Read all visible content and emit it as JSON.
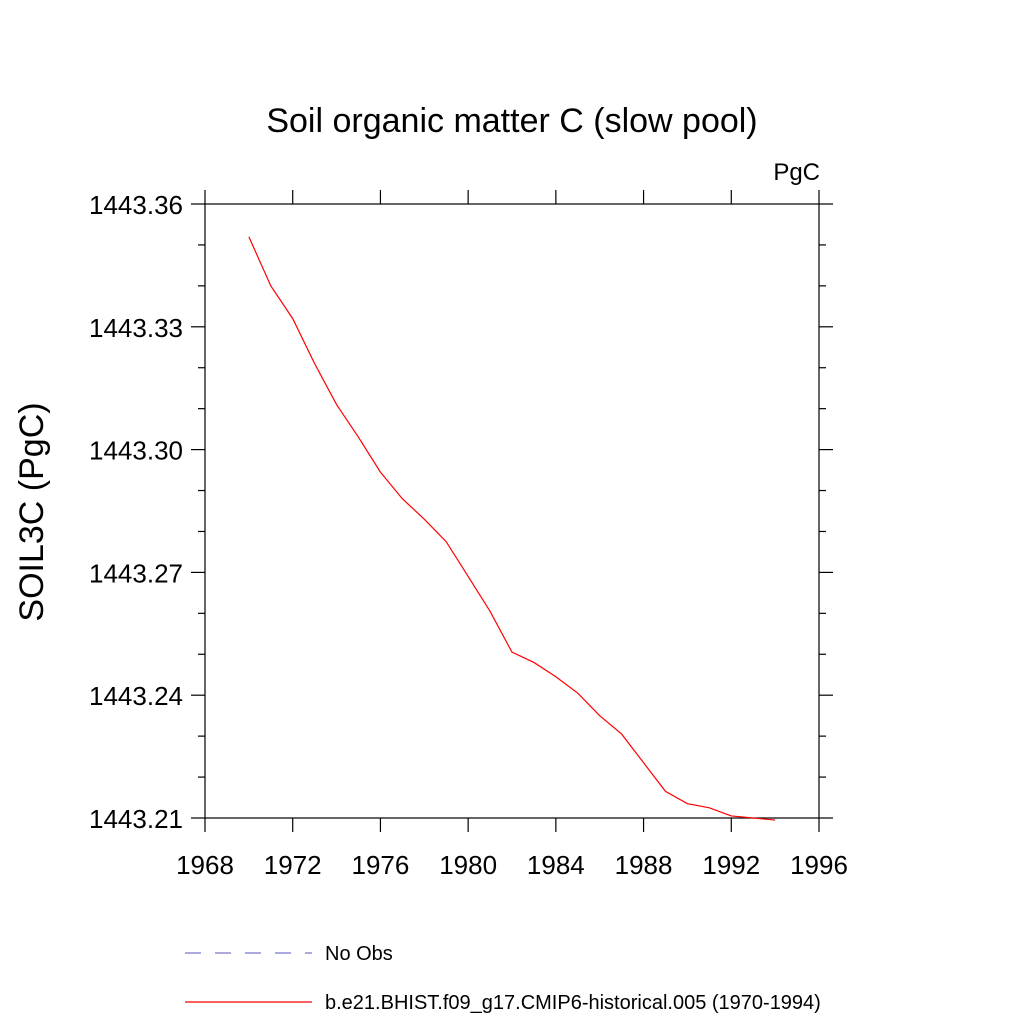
{
  "chart_data": {
    "type": "line",
    "title": "Soil organic matter C (slow pool)",
    "units": "PgC",
    "ylabel": "SOIL3C  (PgC)",
    "xlabel": "",
    "xlim": [
      1968,
      1996
    ],
    "ylim": [
      1443.21,
      1443.36
    ],
    "xticks": [
      1968,
      1972,
      1976,
      1980,
      1984,
      1988,
      1992,
      1996
    ],
    "yticks": [
      1443.21,
      1443.24,
      1443.27,
      1443.3,
      1443.33,
      1443.36
    ],
    "xtick_labels": [
      "1968",
      "1972",
      "1976",
      "1980",
      "1984",
      "1988",
      "1992",
      "1996"
    ],
    "ytick_labels": [
      "1443.21",
      "1443.24",
      "1443.27",
      "1443.30",
      "1443.33",
      "1443.36"
    ],
    "grid": false,
    "legend_position": "bottom",
    "series": [
      {
        "name": "b.e21.BHIST.f09_g17.CMIP6-historical.005 (1970-1994)",
        "color": "#ff0000",
        "style": "solid",
        "x": [
          1970,
          1971,
          1972,
          1973,
          1974,
          1975,
          1976,
          1977,
          1978,
          1979,
          1980,
          1981,
          1982,
          1983,
          1984,
          1985,
          1986,
          1987,
          1988,
          1989,
          1990,
          1991,
          1992,
          1993,
          1994
        ],
        "y": [
          1443.352,
          1443.34,
          1443.332,
          1443.321,
          1443.311,
          1443.303,
          1443.2945,
          1443.288,
          1443.283,
          1443.2775,
          1443.269,
          1443.2605,
          1443.2505,
          1443.248,
          1443.2445,
          1443.2405,
          1443.235,
          1443.2305,
          1443.2235,
          1443.2165,
          1443.2135,
          1443.2125,
          1443.2105,
          1443.21,
          1443.2095
        ]
      }
    ],
    "legend": [
      {
        "label": "No Obs",
        "color": "#7777cc",
        "style": "dashed"
      },
      {
        "label": "b.e21.BHIST.f09_g17.CMIP6-historical.005 (1970-1994)",
        "color": "#ff0000",
        "style": "solid"
      }
    ]
  }
}
